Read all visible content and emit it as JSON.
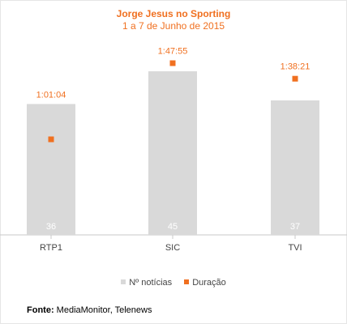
{
  "chart_data": {
    "type": "bar",
    "title": "Jorge Jesus no Sporting",
    "subtitle": "1 a 7 de Junho de 2015",
    "categories": [
      "RTP1",
      "SIC",
      "TVI"
    ],
    "series": [
      {
        "name": "Nº notícias",
        "type": "bar",
        "color": "#d9d9d9",
        "values": [
          36,
          45,
          37
        ],
        "labels": [
          "36",
          "45",
          "37"
        ]
      },
      {
        "name": "Duração",
        "type": "scatter",
        "color": "#f07020",
        "values_seconds": [
          3664,
          6475,
          5901
        ],
        "labels": [
          "1:01:04",
          "1:47:55",
          "1:38:21"
        ]
      }
    ],
    "grid": false,
    "legend": "bottom"
  },
  "source": {
    "label": "Fonte:",
    "text": "MediaMonitor, Telenews"
  },
  "colors": {
    "accent": "#f07020",
    "bar": "#d9d9d9",
    "axis": "#c8c8c8"
  }
}
